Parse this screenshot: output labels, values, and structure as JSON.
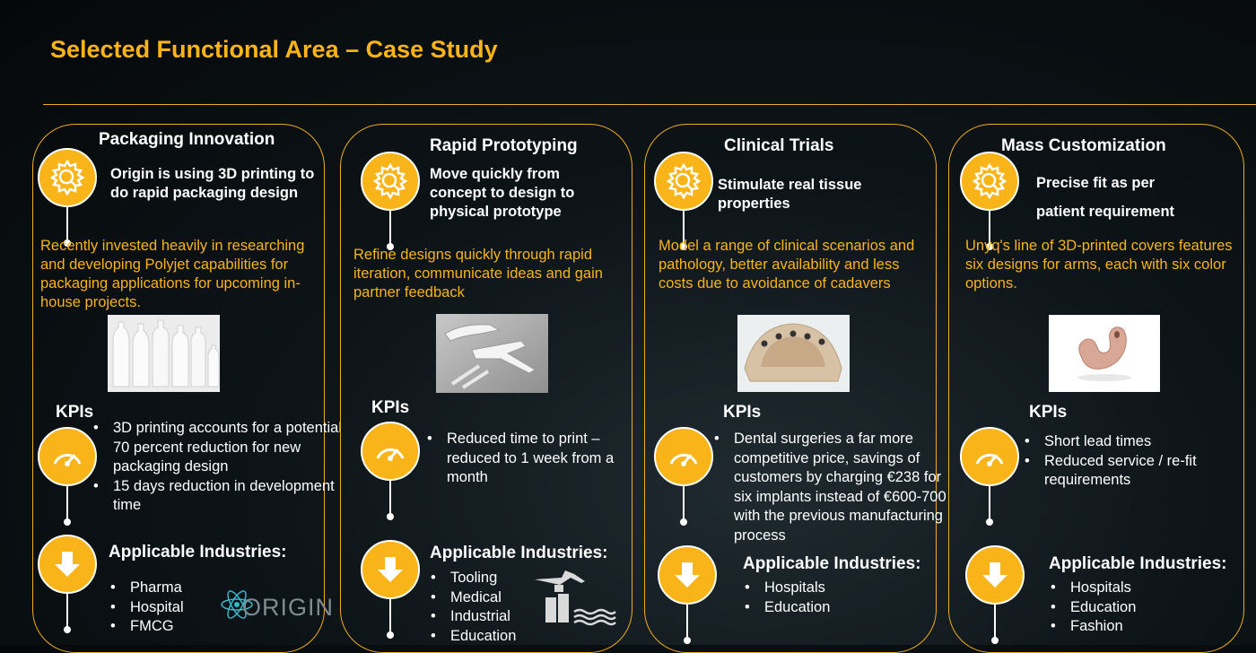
{
  "title": "Selected Functional Area – Case Study",
  "cards": [
    {
      "title": "Packaging Innovation",
      "headline": "Origin is using 3D printing to do rapid packaging design",
      "description": "Recently invested heavily in researching and developing Polyjet capabilities for packaging applications for upcoming in-house projects.",
      "kpi_label": "KPIs",
      "kpis": [
        "3D printing accounts for a potential 70 percent reduction for new packaging design",
        "15 days reduction in development time"
      ],
      "industries_label": "Applicable Industries:",
      "industries": [
        "Pharma",
        "Hospital",
        "FMCG"
      ],
      "logo_text": "ORIGIN"
    },
    {
      "title": "Rapid Prototyping",
      "headline": "Move quickly from concept to design to physical prototype",
      "description": "Refine designs quickly through rapid iteration, communicate ideas and gain partner feedback",
      "kpi_label": "KPIs",
      "kpis": [
        "Reduced time to print – reduced to 1 week from a month"
      ],
      "industries_label": "Applicable Industries:",
      "industries": [
        "Tooling",
        "Medical",
        "Industrial",
        "Education"
      ]
    },
    {
      "title": "Clinical Trials",
      "headline": "Stimulate real tissue properties",
      "description": "Model a range of clinical scenarios and pathology, better availability and less costs due to avoidance of cadavers",
      "kpi_label": "KPIs",
      "kpis": [
        "Dental surgeries a far more competitive price, savings of customers by charging €238 for six implants instead of €600-700 with the previous manufacturing process"
      ],
      "industries_label": "Applicable Industries:",
      "industries": [
        "Hospitals",
        "Education"
      ]
    },
    {
      "title": "Mass Customization",
      "headline": "Precise fit as per patient requirement",
      "description": "Unyq's line of 3D-printed covers features six designs for arms, each with six color options.",
      "kpi_label": "KPIs",
      "kpis": [
        "Short lead times",
        "Reduced service / re-fit requirements"
      ],
      "industries_label": "Applicable Industries:",
      "industries": [
        "Hospitals",
        "Education",
        "Fashion"
      ]
    }
  ],
  "colors": {
    "accent": "#f8b418",
    "background": "#0d1418",
    "text": "#ffffff"
  },
  "icons": {
    "headline": "gear-magnifier-icon",
    "kpi": "speedometer-icon",
    "industries": "down-arrow-icon"
  }
}
